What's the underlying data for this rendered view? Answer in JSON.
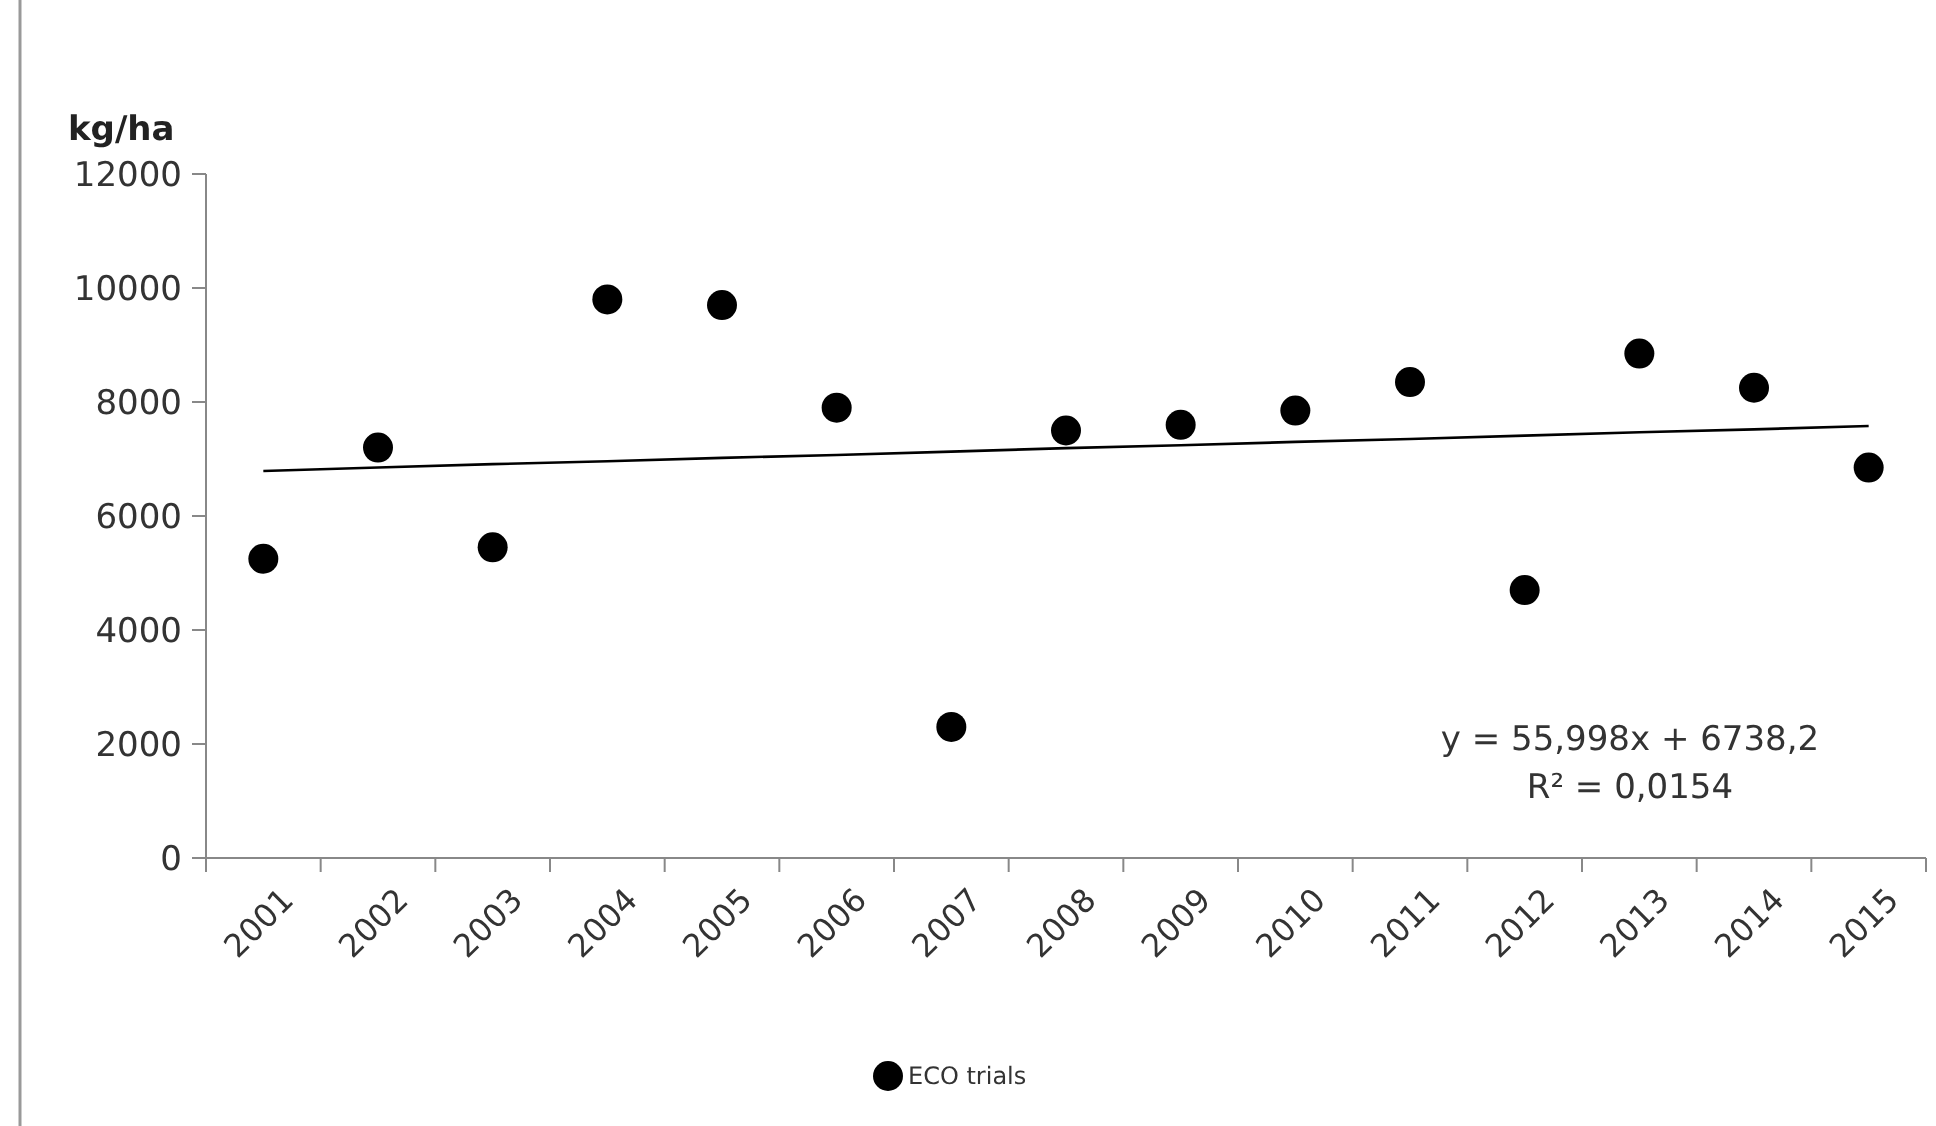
{
  "chart_data": {
    "type": "scatter",
    "ylabel": "kg/ha",
    "categories": [
      "2001",
      "2002",
      "2003",
      "2004",
      "2005",
      "2006",
      "2007",
      "2008",
      "2009",
      "2010",
      "2011",
      "2012",
      "2013",
      "2014",
      "2015"
    ],
    "series": [
      {
        "name": "ECO trials",
        "color": "#000000",
        "marker": "circle",
        "values": [
          5250,
          7200,
          5450,
          9800,
          9700,
          7900,
          2300,
          7500,
          7600,
          7850,
          8350,
          4700,
          8850,
          8250,
          6850
        ]
      },
      {
        "type": "line",
        "color": "#000000",
        "marker": "none",
        "line_style": "solid",
        "values": [
          6790,
          6850,
          6910,
          6960,
          7020,
          7070,
          7130,
          7190,
          7240,
          7300,
          7350,
          7410,
          7470,
          7520,
          7580
        ]
      }
    ],
    "ylim": [
      0,
      12000
    ],
    "yticks": [
      0,
      2000,
      4000,
      6000,
      8000,
      10000,
      12000
    ],
    "grid": false,
    "legend": "bottom",
    "annotations": [
      "y = 55,998x + 6738,2",
      "R² = 0,0154"
    ]
  }
}
